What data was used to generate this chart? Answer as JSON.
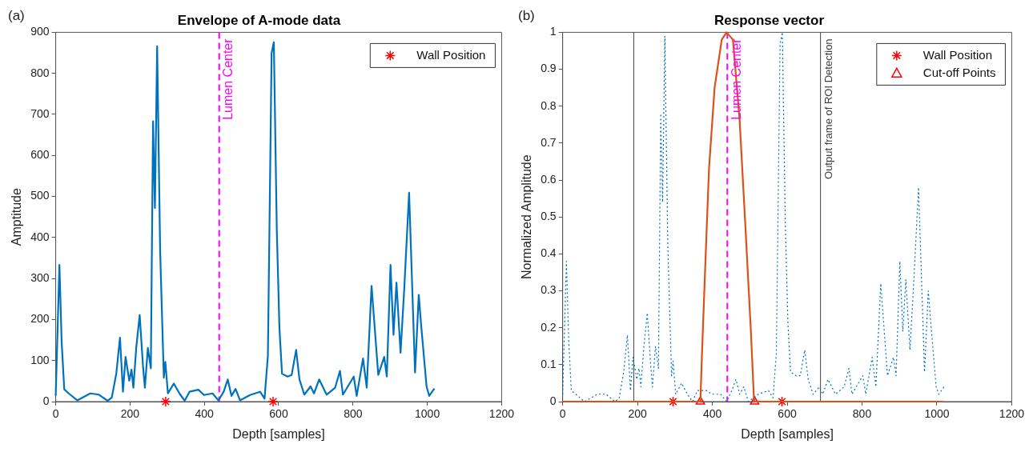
{
  "chart_data": [
    {
      "type": "line",
      "title": "Envelope of A-mode data",
      "xlabel": "Depth [samples]",
      "ylabel": "Amptitude",
      "annotations": [
        "(a)"
      ],
      "xlim": [
        0,
        1200
      ],
      "xticks": [
        0,
        200,
        400,
        600,
        800,
        1000,
        1200
      ],
      "ylim": [
        0,
        900
      ],
      "yticks": [
        0,
        100,
        200,
        300,
        400,
        500,
        600,
        700,
        800,
        900
      ],
      "grid": false,
      "legend": "top right",
      "series": [
        {
          "color": "#0072bd",
          "line_style": "solid",
          "marker": "none",
          "x": [
            0,
            10,
            16,
            23,
            35,
            58,
            93,
            116,
            140,
            151,
            163,
            173,
            181,
            188,
            198,
            204,
            209,
            217,
            226,
            235,
            240,
            248,
            256,
            262,
            267,
            273,
            281,
            291,
            295,
            302,
            318,
            333,
            347,
            360,
            384,
            399,
            422,
            438,
            452,
            463,
            473,
            484,
            496,
            523,
            550,
            562,
            571,
            581,
            587,
            595,
            602,
            609,
            624,
            635,
            647,
            656,
            669,
            686,
            695,
            709,
            729,
            752,
            765,
            773,
            802,
            810,
            827,
            837,
            850,
            868,
            884,
            891,
            901,
            909,
            917,
            928,
            938,
            951,
            967,
            977,
            984,
            998,
            1005,
            1019
          ],
          "values": [
            14,
            333,
            146,
            30,
            20,
            3,
            20,
            17,
            2,
            10,
            68,
            156,
            24,
            109,
            51,
            78,
            34,
            134,
            211,
            85,
            34,
            131,
            81,
            683,
            472,
            866,
            370,
            58,
            97,
            20,
            44,
            20,
            2,
            24,
            29,
            16,
            20,
            3,
            24,
            54,
            14,
            31,
            3,
            16,
            24,
            7,
            112,
            849,
            876,
            418,
            180,
            68,
            61,
            65,
            126,
            54,
            17,
            37,
            20,
            54,
            17,
            34,
            75,
            17,
            61,
            14,
            105,
            34,
            282,
            65,
            109,
            61,
            333,
            163,
            290,
            119,
            276,
            509,
            71,
            260,
            180,
            37,
            14,
            32
          ]
        },
        {
          "type": "scatter",
          "name": "Wall Position",
          "color": "#ff0000",
          "marker": "cross",
          "x": [
            296,
            585
          ],
          "values": [
            0,
            0
          ]
        }
      ],
      "ref_lines": [
        {
          "axis": "x",
          "value": 440,
          "label": "Lumen Center",
          "color": "#ff00ff",
          "line_style": "dashed"
        }
      ]
    },
    {
      "type": "line",
      "title": "Response vector",
      "xlabel": "Depth [samples]",
      "ylabel": "Normalized Amplitude",
      "annotations": [
        "(b)"
      ],
      "xlim": [
        0,
        1200
      ],
      "xticks": [
        0,
        200,
        400,
        600,
        800,
        1000,
        1200
      ],
      "ylim": [
        0,
        1
      ],
      "yticks": [
        0,
        0.1,
        0.2,
        0.3,
        0.4,
        0.5,
        0.6,
        0.7,
        0.8,
        0.9,
        1
      ],
      "grid": false,
      "legend": "top right",
      "series": [
        {
          "color": "#0072bd",
          "line_style": "dotted",
          "marker": "none",
          "x": [
            0,
            10,
            16,
            23,
            35,
            58,
            93,
            116,
            140,
            151,
            163,
            173,
            181,
            188,
            198,
            204,
            209,
            217,
            226,
            235,
            240,
            248,
            256,
            262,
            267,
            273,
            281,
            291,
            295,
            302,
            318,
            333,
            347,
            360,
            384,
            399,
            422,
            438,
            452,
            463,
            473,
            484,
            496,
            523,
            550,
            562,
            571,
            581,
            587,
            595,
            602,
            609,
            624,
            635,
            647,
            656,
            669,
            686,
            695,
            709,
            729,
            752,
            765,
            773,
            802,
            810,
            827,
            837,
            850,
            868,
            884,
            891,
            901,
            909,
            917,
            928,
            938,
            951,
            967,
            977,
            984,
            998,
            1005,
            1019
          ],
          "values": [
            0.02,
            0.38,
            0.17,
            0.03,
            0.02,
            0,
            0.02,
            0.02,
            0,
            0.01,
            0.08,
            0.18,
            0.03,
            0.12,
            0.06,
            0.09,
            0.04,
            0.15,
            0.24,
            0.1,
            0.04,
            0.15,
            0.09,
            0.78,
            0.54,
            0.99,
            0.42,
            0.07,
            0.11,
            0.02,
            0.05,
            0.02,
            0,
            0.03,
            0.03,
            0.02,
            0.02,
            0,
            0.03,
            0.06,
            0.02,
            0.04,
            0,
            0.02,
            0.03,
            0.01,
            0.13,
            0.97,
            1,
            0.48,
            0.21,
            0.08,
            0.07,
            0.07,
            0.14,
            0.06,
            0.02,
            0.04,
            0.02,
            0.06,
            0.02,
            0.04,
            0.09,
            0.02,
            0.07,
            0.02,
            0.12,
            0.04,
            0.32,
            0.07,
            0.12,
            0.07,
            0.38,
            0.19,
            0.33,
            0.14,
            0.32,
            0.58,
            0.08,
            0.3,
            0.21,
            0.04,
            0.02,
            0.04
          ]
        },
        {
          "color": "#d95319",
          "line_style": "solid",
          "marker": "none",
          "x": [
            0,
            368,
            372,
            380,
            391,
            406,
            425,
            438,
            455,
            473,
            488,
            503,
            511,
            513,
            1016
          ],
          "values": [
            0,
            0,
            0.12,
            0.34,
            0.63,
            0.85,
            0.98,
            1,
            0.98,
            0.76,
            0.48,
            0.19,
            0.01,
            0,
            0
          ]
        },
        {
          "type": "scatter",
          "name": "Wall Position",
          "color": "#ff0000",
          "marker": "cross",
          "x": [
            295,
            586
          ],
          "values": [
            0,
            0
          ]
        },
        {
          "type": "scatter",
          "name": "Cut-off Points",
          "color": "#ff0000",
          "marker": "triangle",
          "x": [
            368,
            513
          ],
          "values": [
            0,
            0
          ]
        }
      ],
      "ref_lines": [
        {
          "axis": "x",
          "value": 190,
          "label": null,
          "color": "#404040",
          "line_style": "solid"
        },
        {
          "axis": "x",
          "value": 689,
          "label": "Output frame of ROI Detection",
          "color": "#404040",
          "line_style": "solid"
        },
        {
          "axis": "x",
          "value": 440,
          "label": "Lumen Center",
          "color": "#ff00ff",
          "line_style": "dashed"
        }
      ]
    }
  ]
}
